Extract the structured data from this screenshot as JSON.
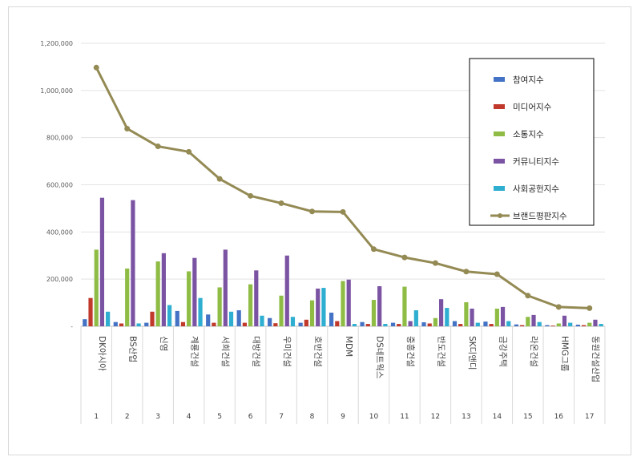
{
  "chart_data": {
    "type": "bar",
    "y_ticks": [
      "-",
      "200,000",
      "400,000",
      "600,000",
      "800,000",
      "1,000,000",
      "1,200,000"
    ],
    "ylim": [
      0,
      1200000
    ],
    "grid": true,
    "legend_position": "top-right",
    "categories": [
      "DK아시아",
      "BS산업",
      "신영",
      "계룡건설",
      "서희건설",
      "대방건설",
      "우미건설",
      "호반건설",
      "MDM",
      "DS네트웍스",
      "중흥건설",
      "반도건설",
      "SK디앤디",
      "금강주택",
      "라온건설",
      "HMG그룹",
      "동원건설산업"
    ],
    "index_labels": [
      "1",
      "2",
      "3",
      "4",
      "5",
      "6",
      "7",
      "8",
      "9",
      "10",
      "11",
      "12",
      "13",
      "14",
      "15",
      "16",
      "17"
    ],
    "series": [
      {
        "name": "참여지수",
        "kind": "bar",
        "color": "#4472c4",
        "values": [
          30000,
          18000,
          15000,
          65000,
          50000,
          68000,
          35000,
          15000,
          58000,
          18000,
          15000,
          17000,
          22000,
          20000,
          8000,
          5000,
          7000
        ]
      },
      {
        "name": "미디어지수",
        "kind": "bar",
        "color": "#c0392b",
        "values": [
          120000,
          12000,
          62000,
          18000,
          15000,
          15000,
          13000,
          28000,
          22000,
          10000,
          10000,
          12000,
          10000,
          10000,
          5000,
          3000,
          5000
        ]
      },
      {
        "name": "소통지수",
        "kind": "bar",
        "color": "#8fbc45",
        "values": [
          325000,
          245000,
          275000,
          233000,
          165000,
          178000,
          130000,
          110000,
          192000,
          112000,
          168000,
          35000,
          102000,
          75000,
          40000,
          12000,
          15000
        ]
      },
      {
        "name": "커뮤니티지수",
        "kind": "bar",
        "color": "#7b53a3",
        "values": [
          545000,
          535000,
          310000,
          290000,
          325000,
          237000,
          300000,
          160000,
          198000,
          170000,
          22000,
          115000,
          75000,
          82000,
          48000,
          45000,
          28000
        ]
      },
      {
        "name": "사회공헌지수",
        "kind": "bar",
        "color": "#2eaed0",
        "values": [
          62000,
          12000,
          90000,
          120000,
          62000,
          45000,
          40000,
          163000,
          10000,
          10000,
          68000,
          78000,
          15000,
          22000,
          18000,
          15000,
          10000
        ]
      },
      {
        "name": "브랜드평판지수",
        "kind": "line",
        "color": "#948a54",
        "values": [
          1097000,
          838000,
          763000,
          740000,
          625000,
          553000,
          522000,
          487000,
          485000,
          327000,
          292000,
          268000,
          232000,
          221000,
          130000,
          82000,
          77000
        ]
      }
    ]
  }
}
